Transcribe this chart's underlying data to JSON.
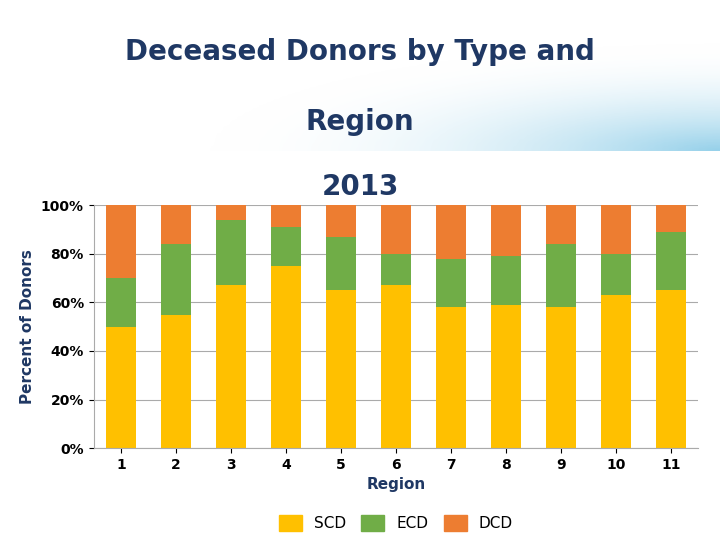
{
  "title_line1": "Deceased Donors by Type and",
  "title_line2": "Region",
  "title_line3": "2013",
  "xlabel": "Region",
  "ylabel": "Percent of Donors",
  "regions": [
    1,
    2,
    3,
    4,
    5,
    6,
    7,
    8,
    9,
    10,
    11
  ],
  "SCD": [
    50,
    55,
    67,
    75,
    65,
    67,
    58,
    59,
    58,
    63,
    65
  ],
  "ECD": [
    20,
    29,
    27,
    16,
    22,
    13,
    20,
    20,
    26,
    17,
    24
  ],
  "DCD": [
    30,
    16,
    6,
    9,
    13,
    20,
    22,
    21,
    16,
    20,
    11
  ],
  "colors": {
    "SCD": "#FFC000",
    "ECD": "#70AD47",
    "DCD": "#ED7D31"
  },
  "background_color": "#FFFFFF",
  "title_fontsize": 20,
  "title_color": "#1F3864",
  "label_fontsize": 11,
  "tick_fontsize": 10,
  "ylim": [
    0,
    100
  ],
  "yticks": [
    0,
    20,
    40,
    60,
    80,
    100
  ],
  "ytick_labels": [
    "0%",
    "20%",
    "40%",
    "60%",
    "80%",
    "100%"
  ],
  "bar_width": 0.55
}
